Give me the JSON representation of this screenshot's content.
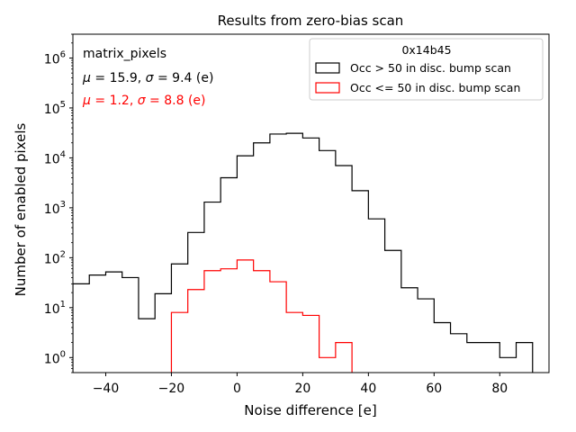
{
  "chart_data": {
    "type": "histogram",
    "title": "Results from zero-bias scan",
    "xlabel": "Noise difference [e]",
    "ylabel": "Number of enabled pixels",
    "xlim": [
      -50,
      95
    ],
    "ylim_log": [
      0.5,
      3000000
    ],
    "yscale": "log",
    "xticks": [
      -40,
      -20,
      0,
      20,
      40,
      60,
      80
    ],
    "xtick_labels": [
      "−40",
      "−20",
      "0",
      "20",
      "40",
      "60",
      "80"
    ],
    "yticks": [
      1,
      10,
      100,
      1000,
      10000,
      100000,
      1000000
    ],
    "ytick_labels": [
      {
        "base": "10",
        "exp": "0"
      },
      {
        "base": "10",
        "exp": "1"
      },
      {
        "base": "10",
        "exp": "2"
      },
      {
        "base": "10",
        "exp": "3"
      },
      {
        "base": "10",
        "exp": "4"
      },
      {
        "base": "10",
        "exp": "5"
      },
      {
        "base": "10",
        "exp": "6"
      }
    ],
    "bin_edges": [
      -50,
      -45,
      -40,
      -35,
      -30,
      -25,
      -20,
      -15,
      -10,
      -5,
      0,
      5,
      10,
      15,
      20,
      25,
      30,
      35,
      40,
      45,
      50,
      55,
      60,
      65,
      70,
      75,
      80,
      85,
      90
    ],
    "series": [
      {
        "name": "Occ > 50 in disc. bump scan",
        "color": "#000000",
        "values": [
          30,
          45,
          52,
          40,
          6,
          19,
          75,
          320,
          1300,
          4000,
          11000,
          20000,
          30000,
          31000,
          25000,
          14000,
          7000,
          2200,
          600,
          140,
          25,
          15,
          5,
          3,
          2,
          2,
          1,
          2
        ]
      },
      {
        "name": "Occ <= 50 in disc. bump scan",
        "color": "#ff0000",
        "values": [
          0,
          0,
          0,
          0,
          0,
          0,
          8,
          23,
          55,
          60,
          90,
          55,
          33,
          8,
          7,
          1,
          2,
          0,
          0,
          0,
          0,
          0,
          0,
          0,
          0,
          0,
          0,
          0
        ]
      }
    ],
    "legend": {
      "title": "0x14b45",
      "location": "upper right"
    },
    "annotations": {
      "label": "matrix_pixels",
      "stats_black": {
        "mu": "15.9",
        "sigma": "9.4",
        "unit": "(e)",
        "color": "#000000"
      },
      "stats_red": {
        "mu": "1.2",
        "sigma": "8.8",
        "unit": "(e)",
        "color": "#ff0000"
      }
    }
  }
}
